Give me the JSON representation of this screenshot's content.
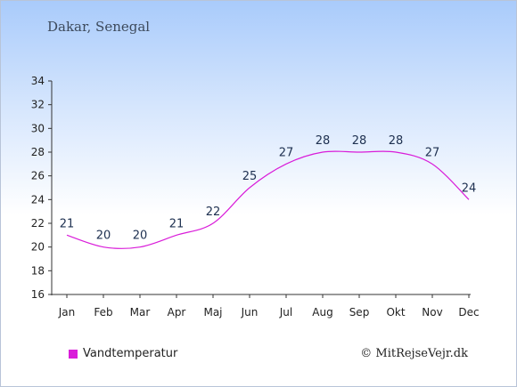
{
  "header": {
    "location": "Dakar, Senegal"
  },
  "chart_data": {
    "type": "line",
    "categories": [
      "Jan",
      "Feb",
      "Mar",
      "Apr",
      "Maj",
      "Jun",
      "Jul",
      "Aug",
      "Sep",
      "Okt",
      "Nov",
      "Dec"
    ],
    "series": [
      {
        "name": "Vandtemperatur",
        "values": [
          21,
          20,
          20,
          21,
          22,
          25,
          27,
          28,
          28,
          28,
          27,
          24
        ],
        "color": "#d91cd9"
      }
    ],
    "ylim": [
      16,
      34
    ],
    "yticks": [
      16,
      18,
      20,
      22,
      24,
      26,
      28,
      30,
      32,
      34
    ],
    "grid": false,
    "legend": "bottom-left"
  },
  "footer": {
    "credit": "© MitRejseVejr.dk"
  }
}
